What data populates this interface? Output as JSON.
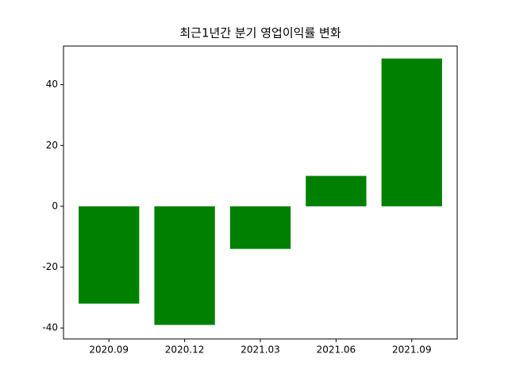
{
  "chart_data": {
    "type": "bar",
    "title": "최근1년간 분기 영업이익률 변화",
    "categories": [
      "2020.09",
      "2020.12",
      "2021.03",
      "2021.06",
      "2021.09"
    ],
    "values": [
      -32,
      -39,
      -14,
      10,
      48.6
    ],
    "color": "#008000",
    "ylim": [
      -43.6,
      52.7
    ],
    "yticks": [
      -40,
      -20,
      0,
      20,
      40
    ],
    "grid": false
  }
}
